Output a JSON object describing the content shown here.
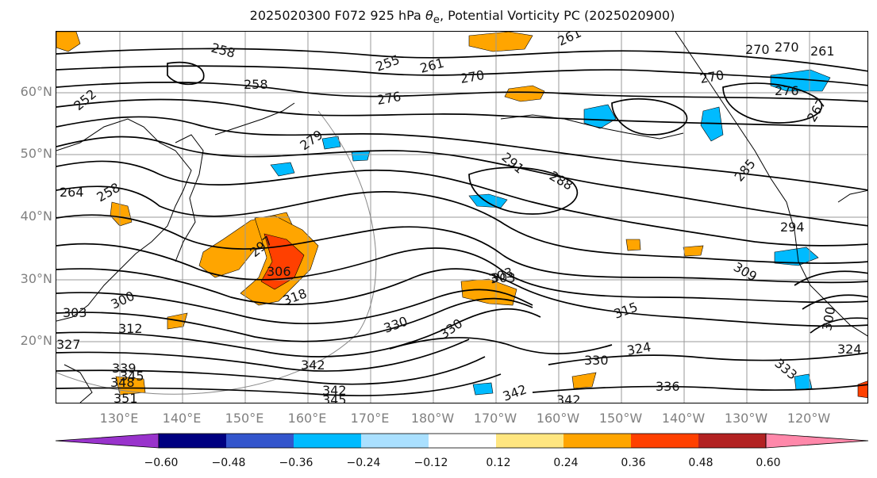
{
  "title_pre": "2025020300 F072 925 hPa ",
  "title_theta": "θ",
  "title_sub": "e",
  "title_post": ", Potential Vorticity PC (2025020900)",
  "lat_labels": [
    "60°N",
    "50°N",
    "40°N",
    "30°N",
    "20°N"
  ],
  "lon_labels": [
    "130°E",
    "140°E",
    "150°E",
    "160°E",
    "170°E",
    "180°W",
    "170°W",
    "160°W",
    "150°W",
    "140°W",
    "130°W",
    "120°W"
  ],
  "contour_labels": [
    "258",
    "258",
    "255",
    "261",
    "261",
    "270",
    "270",
    "252",
    "264",
    "258",
    "276",
    "279",
    "270",
    "276",
    "270",
    "261",
    "291",
    "288",
    "285",
    "297",
    "306",
    "300",
    "303",
    "318",
    "312",
    "303",
    "327",
    "339",
    "345",
    "348",
    "351",
    "342",
    "342",
    "345",
    "330",
    "330",
    "303",
    "315",
    "309",
    "324",
    "330",
    "342",
    "342",
    "336",
    "324",
    "300",
    "333",
    "294",
    "267"
  ],
  "colorbar": {
    "colors": [
      "#9933cc",
      "#000080",
      "#3355cc",
      "#00bbff",
      "#aae0ff",
      "#ffffff",
      "#ffe680",
      "#ffa500",
      "#ff4000",
      "#b22222",
      "#ff88aa"
    ],
    "tick_labels": [
      "−0.60",
      "−0.48",
      "−0.36",
      "−0.24",
      "−0.12",
      "0.12",
      "0.24",
      "0.36",
      "0.48",
      "0.60"
    ]
  }
}
